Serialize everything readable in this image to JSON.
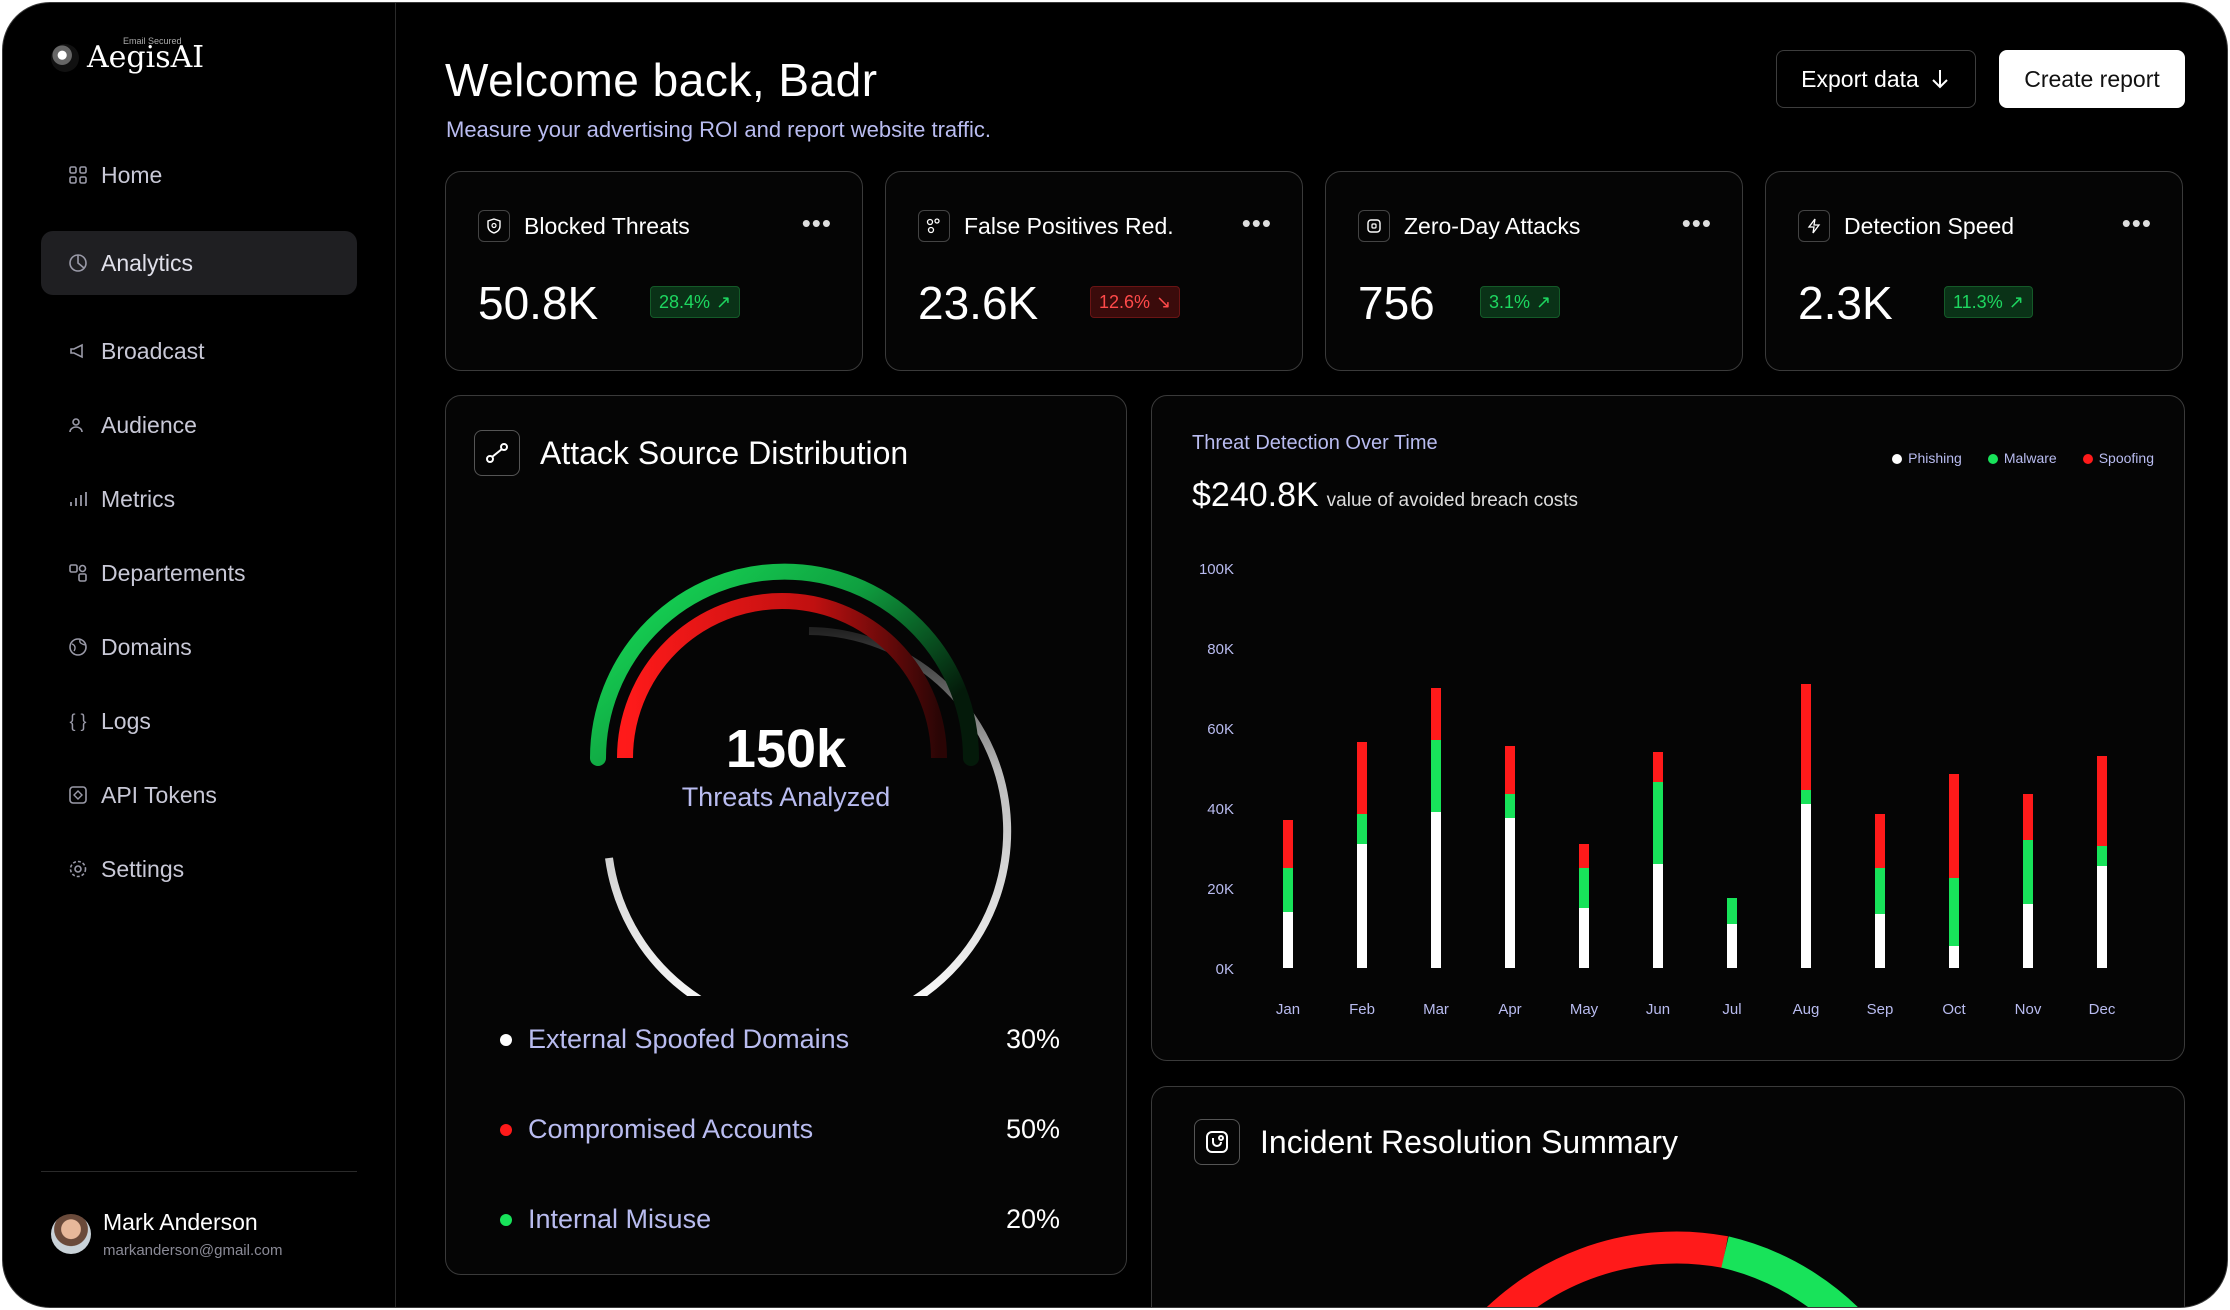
{
  "sidebar": {
    "brand": "AegisAI",
    "brand_sub": "Email Secured",
    "items": [
      {
        "label": "Home",
        "icon": "grid-icon"
      },
      {
        "label": "Analytics",
        "icon": "pie-icon"
      },
      {
        "label": "Broadcast",
        "icon": "megaphone-icon"
      },
      {
        "label": "Audience",
        "icon": "users-icon"
      },
      {
        "label": "Metrics",
        "icon": "bar-chart-icon"
      },
      {
        "label": "Departements",
        "icon": "departments-icon"
      },
      {
        "label": "Domains",
        "icon": "globe-icon"
      },
      {
        "label": "Logs",
        "icon": "braces-icon"
      },
      {
        "label": "API Tokens",
        "icon": "token-icon"
      },
      {
        "label": "Settings",
        "icon": "gear-icon"
      }
    ],
    "active": "Analytics",
    "user": {
      "name": "Mark Anderson",
      "email": "markanderson@gmail.com"
    }
  },
  "header": {
    "title": "Welcome back, Badr",
    "subtitle": "Measure your advertising ROI and report website traffic.",
    "export_label": "Export data",
    "create_label": "Create report"
  },
  "kpis": [
    {
      "label": "Blocked Threats",
      "value": "50.8K",
      "change": "28.4%",
      "trend": "up"
    },
    {
      "label": "False Positives Red.",
      "value": "23.6K",
      "change": "12.6%",
      "trend": "down"
    },
    {
      "label": "Zero-Day Attacks",
      "value": "756",
      "change": "3.1%",
      "trend": "up"
    },
    {
      "label": "Detection Speed",
      "value": "2.3K",
      "change": "11.3%",
      "trend": "up"
    }
  ],
  "distribution": {
    "title": "Attack Source Distribution",
    "total": "150k",
    "total_label": "Threats Analyzed",
    "items": [
      {
        "label": "External Spoofed Domains",
        "pct": "30%",
        "color": "#ffffff"
      },
      {
        "label": "Compromised Accounts",
        "pct": "50%",
        "color": "#ff1a1a"
      },
      {
        "label": "Internal Misuse",
        "pct": "20%",
        "color": "#18e35a"
      }
    ]
  },
  "chart_data": {
    "type": "bar",
    "stacked": true,
    "title": "Threat Detection Over Time",
    "headline_value": "$240.8K",
    "headline_caption": "value of avoided breach costs",
    "categories": [
      "Jan",
      "Feb",
      "Mar",
      "Apr",
      "May",
      "Jun",
      "Jul",
      "Aug",
      "Sep",
      "Oct",
      "Nov",
      "Dec"
    ],
    "yticks": [
      "0K",
      "20K",
      "40K",
      "60K",
      "80K",
      "100K"
    ],
    "ylim": [
      0,
      100000
    ],
    "legend_position": "top-right",
    "series": [
      {
        "name": "Phishing",
        "color": "#ffffff",
        "values": [
          14000,
          31000,
          39000,
          37500,
          15000,
          26000,
          11000,
          41000,
          13500,
          5500,
          16000,
          25500
        ]
      },
      {
        "name": "Malware",
        "color": "#18e35a",
        "values": [
          11000,
          7500,
          18000,
          6000,
          10000,
          20500,
          6500,
          3500,
          11500,
          17000,
          16000,
          5000
        ]
      },
      {
        "name": "Spoofing",
        "color": "#ff1a1a",
        "values": [
          12000,
          18000,
          13000,
          12000,
          6000,
          7500,
          0,
          26500,
          13500,
          26000,
          11500,
          22500
        ]
      }
    ]
  },
  "incident": {
    "title": "Incident Resolution Summary"
  }
}
